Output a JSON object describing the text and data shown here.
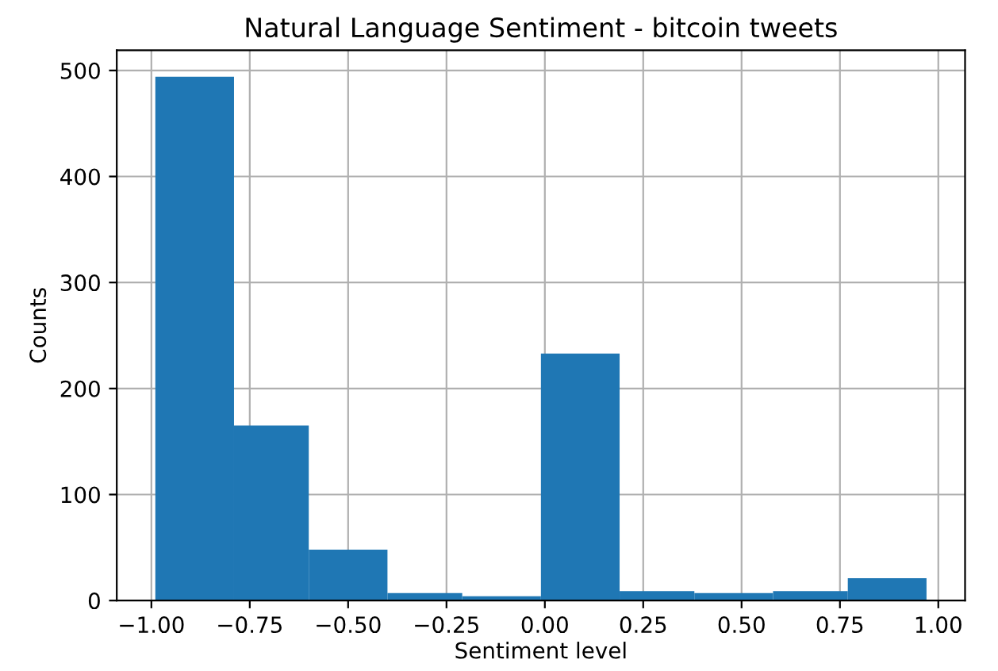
{
  "chart_data": {
    "type": "histogram",
    "title": "Natural Language Sentiment - bitcoin tweets",
    "xlabel": "Sentiment level",
    "ylabel": "Counts",
    "bins": [
      -0.99,
      -0.79,
      -0.6,
      -0.4,
      -0.21,
      -0.01,
      0.19,
      0.38,
      0.58,
      0.77,
      0.97
    ],
    "values": [
      494,
      165,
      48,
      7,
      4,
      233,
      9,
      7,
      9,
      21
    ],
    "color": "#1f77b4",
    "xlim": [
      -1.088,
      1.068
    ],
    "ylim": [
      0,
      519
    ],
    "xticks": [
      {
        "value": -1.0,
        "label": "−1.00"
      },
      {
        "value": -0.75,
        "label": "−0.75"
      },
      {
        "value": -0.5,
        "label": "−0.50"
      },
      {
        "value": -0.25,
        "label": "−0.25"
      },
      {
        "value": 0.0,
        "label": "0.00"
      },
      {
        "value": 0.25,
        "label": "0.25"
      },
      {
        "value": 0.5,
        "label": "0.50"
      },
      {
        "value": 0.75,
        "label": "0.75"
      },
      {
        "value": 1.0,
        "label": "1.00"
      }
    ],
    "yticks": [
      0,
      100,
      200,
      300,
      400,
      500
    ],
    "grid": true
  }
}
